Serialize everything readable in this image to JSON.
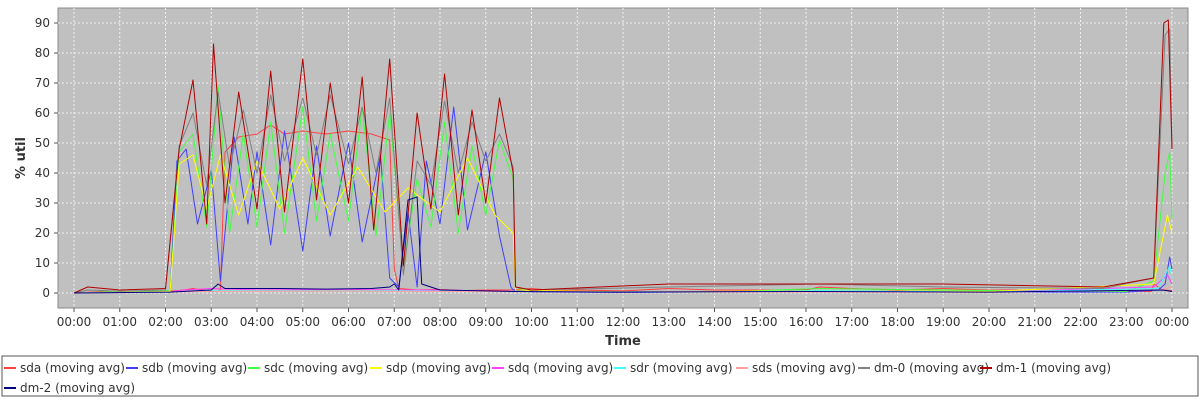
{
  "chart_data": {
    "type": "line",
    "xlabel": "Time",
    "ylabel": "% util",
    "ylim": [
      -5,
      95
    ],
    "xlim": [
      -0.35,
      24.35
    ],
    "y_ticks": [
      0,
      10,
      20,
      30,
      40,
      50,
      60,
      70,
      80,
      90
    ],
    "x_ticks": [
      "00:00",
      "01:00",
      "02:00",
      "03:00",
      "04:00",
      "05:00",
      "06:00",
      "07:00",
      "08:00",
      "09:00",
      "10:00",
      "11:00",
      "12:00",
      "13:00",
      "14:00",
      "15:00",
      "16:00",
      "17:00",
      "18:00",
      "19:00",
      "20:00",
      "21:00",
      "22:00",
      "23:00",
      "00:00"
    ],
    "grid": true,
    "legend_position": "bottom",
    "background_color": "#c0c0c0",
    "series": [
      {
        "name": "sda (moving avg)",
        "color": "#ff4040",
        "points": [
          [
            0,
            0
          ],
          [
            0.6,
            0.5
          ],
          [
            1,
            0.3
          ],
          [
            2,
            0.4
          ],
          [
            2.4,
            1
          ],
          [
            2.6,
            1.5
          ],
          [
            3,
            0.5
          ],
          [
            3.2,
            1
          ],
          [
            3.3,
            47
          ],
          [
            3.6,
            52
          ],
          [
            4,
            53
          ],
          [
            4.3,
            56
          ],
          [
            4.6,
            53
          ],
          [
            5,
            54
          ],
          [
            5.5,
            53
          ],
          [
            6,
            54
          ],
          [
            6.5,
            53
          ],
          [
            6.9,
            51
          ],
          [
            7,
            8
          ],
          [
            7.1,
            1.5
          ],
          [
            7.5,
            1
          ],
          [
            8,
            1.2
          ],
          [
            8.5,
            0.8
          ],
          [
            9,
            1
          ],
          [
            9.5,
            1
          ],
          [
            10,
            1.5
          ],
          [
            10.5,
            0.8
          ],
          [
            11,
            1
          ],
          [
            12,
            0.7
          ],
          [
            13,
            1.5
          ],
          [
            14,
            1
          ],
          [
            15,
            1
          ],
          [
            16,
            1
          ],
          [
            16.3,
            2
          ],
          [
            17,
            1.5
          ],
          [
            18,
            1
          ],
          [
            19,
            1.5
          ],
          [
            20,
            1
          ],
          [
            21,
            1
          ],
          [
            22,
            0.3
          ],
          [
            23,
            0.5
          ],
          [
            23.55,
            0.5
          ],
          [
            23.6,
            3
          ],
          [
            23.8,
            1
          ],
          [
            24,
            0.8
          ]
        ]
      },
      {
        "name": "sdb (moving avg)",
        "color": "#4040ff",
        "points": [
          [
            0,
            0
          ],
          [
            1,
            0.2
          ],
          [
            2.1,
            0.3
          ],
          [
            2.25,
            44
          ],
          [
            2.45,
            48
          ],
          [
            2.7,
            23
          ],
          [
            3,
            41
          ],
          [
            3.2,
            4
          ],
          [
            3.5,
            52
          ],
          [
            3.8,
            23
          ],
          [
            4,
            47
          ],
          [
            4.3,
            16
          ],
          [
            4.6,
            54
          ],
          [
            5,
            14
          ],
          [
            5.3,
            49
          ],
          [
            5.6,
            19
          ],
          [
            6,
            50
          ],
          [
            6.3,
            17
          ],
          [
            6.7,
            46
          ],
          [
            6.9,
            5
          ],
          [
            7.1,
            2
          ],
          [
            7.3,
            27
          ],
          [
            7.5,
            2
          ],
          [
            7.7,
            44
          ],
          [
            8,
            23
          ],
          [
            8.3,
            62
          ],
          [
            8.6,
            21
          ],
          [
            9,
            47
          ],
          [
            9.3,
            19
          ],
          [
            9.55,
            2
          ],
          [
            9.6,
            1
          ],
          [
            10,
            0.3
          ],
          [
            12,
            0.2
          ],
          [
            16,
            0.5
          ],
          [
            20,
            0.3
          ],
          [
            23,
            0.3
          ],
          [
            23.7,
            1
          ],
          [
            23.85,
            3
          ],
          [
            23.95,
            12
          ],
          [
            24,
            8
          ]
        ]
      },
      {
        "name": "sdc (moving avg)",
        "color": "#40ff40",
        "points": [
          [
            0,
            0
          ],
          [
            1,
            0.5
          ],
          [
            2.1,
            0.8
          ],
          [
            2.3,
            47
          ],
          [
            2.6,
            53
          ],
          [
            2.9,
            22
          ],
          [
            3.15,
            69
          ],
          [
            3.4,
            20
          ],
          [
            3.7,
            53
          ],
          [
            4,
            22
          ],
          [
            4.3,
            57
          ],
          [
            4.6,
            20
          ],
          [
            5,
            62
          ],
          [
            5.3,
            24
          ],
          [
            5.6,
            53
          ],
          [
            6,
            24
          ],
          [
            6.3,
            62
          ],
          [
            6.6,
            19
          ],
          [
            6.9,
            60
          ],
          [
            7.2,
            9
          ],
          [
            7.5,
            38
          ],
          [
            7.8,
            22
          ],
          [
            8.1,
            57
          ],
          [
            8.4,
            20
          ],
          [
            8.7,
            49
          ],
          [
            9,
            26
          ],
          [
            9.3,
            51
          ],
          [
            9.6,
            38
          ],
          [
            9.65,
            2
          ],
          [
            10,
            0.5
          ],
          [
            14,
            0.3
          ],
          [
            16.3,
            1.5
          ],
          [
            19,
            1
          ],
          [
            23,
            0.5
          ],
          [
            23.6,
            4
          ],
          [
            23.85,
            40
          ],
          [
            23.95,
            47
          ],
          [
            24,
            25
          ]
        ]
      },
      {
        "name": "sdp (moving avg)",
        "color": "#ffff00",
        "points": [
          [
            0,
            0
          ],
          [
            2.1,
            0.5
          ],
          [
            2.3,
            43
          ],
          [
            2.6,
            46
          ],
          [
            2.9,
            28
          ],
          [
            3.2,
            46
          ],
          [
            3.6,
            26
          ],
          [
            4,
            44
          ],
          [
            4.5,
            28
          ],
          [
            5,
            45
          ],
          [
            5.6,
            26
          ],
          [
            6.2,
            42
          ],
          [
            6.8,
            27
          ],
          [
            7.3,
            35
          ],
          [
            8,
            27
          ],
          [
            8.6,
            45
          ],
          [
            9.2,
            26
          ],
          [
            9.6,
            20
          ],
          [
            9.65,
            1
          ],
          [
            12,
            0.3
          ],
          [
            16,
            0.8
          ],
          [
            20,
            0.5
          ],
          [
            23.6,
            3
          ],
          [
            23.9,
            26
          ],
          [
            24,
            20
          ]
        ]
      },
      {
        "name": "sdq (moving avg)",
        "color": "#ff40ff",
        "points": [
          [
            0,
            0
          ],
          [
            2.1,
            0.3
          ],
          [
            2.4,
            1
          ],
          [
            3,
            1.5
          ],
          [
            4,
            1
          ],
          [
            6,
            1.2
          ],
          [
            7,
            1
          ],
          [
            8,
            1
          ],
          [
            9.6,
            0.5
          ],
          [
            12,
            0.3
          ],
          [
            16,
            0.5
          ],
          [
            20,
            0.3
          ],
          [
            23.6,
            2
          ],
          [
            23.9,
            6
          ],
          [
            24,
            3
          ]
        ]
      },
      {
        "name": "sdr (moving avg)",
        "color": "#40ffff",
        "points": [
          [
            0,
            0
          ],
          [
            2.1,
            0.3
          ],
          [
            3,
            0.8
          ],
          [
            5,
            0.8
          ],
          [
            7,
            0.8
          ],
          [
            9.6,
            0.4
          ],
          [
            14,
            0.3
          ],
          [
            16.3,
            0.8
          ],
          [
            20,
            0.3
          ],
          [
            23.7,
            1.5
          ],
          [
            23.95,
            9
          ],
          [
            24,
            5
          ]
        ]
      },
      {
        "name": "sds (moving avg)",
        "color": "#ffa0a0",
        "points": [
          [
            0,
            0
          ],
          [
            2.1,
            0.3
          ],
          [
            3,
            0.6
          ],
          [
            6,
            0.7
          ],
          [
            9.6,
            0.4
          ],
          [
            14,
            0.3
          ],
          [
            20,
            0.2
          ],
          [
            23.7,
            1
          ],
          [
            24,
            2
          ]
        ]
      },
      {
        "name": "dm-0 (moving avg)",
        "color": "#808080",
        "points": [
          [
            0,
            0
          ],
          [
            0.3,
            1
          ],
          [
            1,
            0.6
          ],
          [
            2,
            1
          ],
          [
            2.3,
            49
          ],
          [
            2.6,
            60
          ],
          [
            2.9,
            36
          ],
          [
            3.15,
            67
          ],
          [
            3.4,
            42
          ],
          [
            3.7,
            61
          ],
          [
            4,
            40
          ],
          [
            4.3,
            66
          ],
          [
            4.6,
            44
          ],
          [
            5,
            65
          ],
          [
            5.3,
            46
          ],
          [
            5.6,
            66
          ],
          [
            6,
            43
          ],
          [
            6.3,
            62
          ],
          [
            6.6,
            40
          ],
          [
            6.9,
            65
          ],
          [
            7.2,
            6
          ],
          [
            7.5,
            44
          ],
          [
            7.8,
            36
          ],
          [
            8.1,
            64
          ],
          [
            8.4,
            40
          ],
          [
            8.7,
            57
          ],
          [
            9,
            44
          ],
          [
            9.3,
            53
          ],
          [
            9.6,
            42
          ],
          [
            9.65,
            2
          ],
          [
            10,
            1
          ],
          [
            13,
            2
          ],
          [
            16.3,
            3
          ],
          [
            19,
            2
          ],
          [
            22.5,
            1.5
          ],
          [
            23.6,
            5
          ],
          [
            23.85,
            86
          ],
          [
            23.95,
            88
          ],
          [
            24,
            48
          ]
        ]
      },
      {
        "name": "dm-1 (moving avg)",
        "color": "#b00000",
        "points": [
          [
            0,
            0
          ],
          [
            0.3,
            2
          ],
          [
            1,
            1
          ],
          [
            2,
            1.5
          ],
          [
            2.3,
            48
          ],
          [
            2.6,
            71
          ],
          [
            2.9,
            23
          ],
          [
            3.05,
            83
          ],
          [
            3.3,
            30
          ],
          [
            3.6,
            67
          ],
          [
            4,
            28
          ],
          [
            4.3,
            74
          ],
          [
            4.6,
            27
          ],
          [
            5,
            78
          ],
          [
            5.3,
            31
          ],
          [
            5.6,
            70
          ],
          [
            6,
            30
          ],
          [
            6.3,
            72
          ],
          [
            6.55,
            21
          ],
          [
            6.9,
            78
          ],
          [
            7.2,
            9
          ],
          [
            7.5,
            60
          ],
          [
            7.8,
            28
          ],
          [
            8.1,
            73
          ],
          [
            8.4,
            26
          ],
          [
            8.7,
            61
          ],
          [
            9,
            30
          ],
          [
            9.3,
            65
          ],
          [
            9.6,
            40
          ],
          [
            9.65,
            2
          ],
          [
            10,
            1
          ],
          [
            13,
            3
          ],
          [
            16.3,
            3
          ],
          [
            19,
            3
          ],
          [
            22.5,
            2
          ],
          [
            23.6,
            5
          ],
          [
            23.82,
            90
          ],
          [
            23.92,
            91
          ],
          [
            24,
            48
          ]
        ]
      },
      {
        "name": "dm-2 (moving avg)",
        "color": "#000080",
        "points": [
          [
            0,
            0
          ],
          [
            2.1,
            0.3
          ],
          [
            3,
            1
          ],
          [
            3.15,
            3
          ],
          [
            3.3,
            1.5
          ],
          [
            4.5,
            1.5
          ],
          [
            5.5,
            1.3
          ],
          [
            6.5,
            1.5
          ],
          [
            6.9,
            2
          ],
          [
            7,
            3
          ],
          [
            7.1,
            1
          ],
          [
            7.3,
            31
          ],
          [
            7.5,
            32
          ],
          [
            7.6,
            3
          ],
          [
            8,
            1
          ],
          [
            9.6,
            0.5
          ],
          [
            12,
            0.3
          ],
          [
            16,
            0.5
          ],
          [
            20,
            0.3
          ],
          [
            23.8,
            1
          ],
          [
            24,
            0.5
          ]
        ]
      }
    ]
  }
}
